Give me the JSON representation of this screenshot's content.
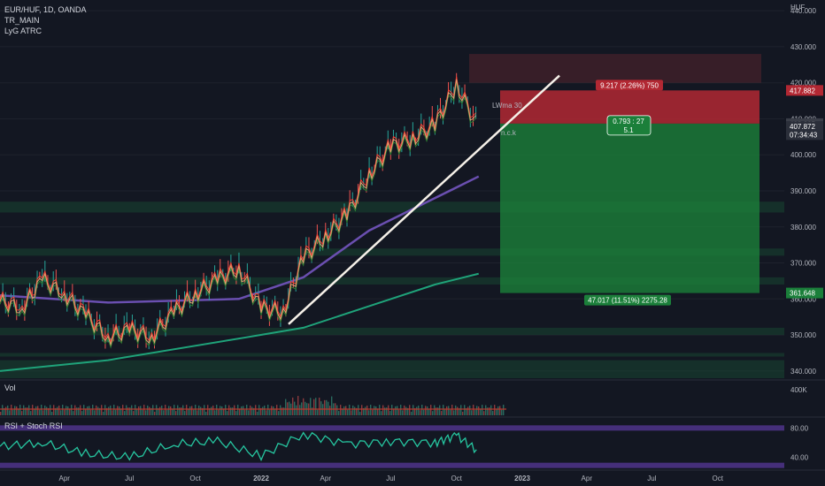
{
  "header": {
    "symbol_line": "EUR/HUF, 1D, OANDA",
    "indicator_1": "TR_MAIN",
    "indicator_2": "LyG ATRC"
  },
  "panes": {
    "volume_label": "Vol",
    "volume_axis_label": "400K",
    "rsi_label": "RSI + Stoch RSI",
    "rsi_axis_labels": [
      "80.00",
      "40.00"
    ]
  },
  "price_axis": {
    "currency": "HUF",
    "ticks": [
      440,
      430,
      420,
      410,
      400,
      390,
      380,
      370,
      360,
      350,
      340
    ],
    "tick_labels": [
      "440.000",
      "430.000",
      "420.000",
      "410.000",
      "400.000",
      "390.000",
      "380.000",
      "370.000",
      "360.000",
      "350.000",
      "340.000"
    ],
    "tags": [
      {
        "label": "417.882",
        "value": 417.882,
        "color": "#b22833"
      },
      {
        "label": "408.665",
        "value": 408.665,
        "color": "#3a3e48"
      },
      {
        "label": "407.872",
        "value": 407.872,
        "color": "#2b2f3a"
      },
      {
        "label": "07:34:43",
        "value": 405.6,
        "color": "#2b2f3a"
      },
      {
        "label": "361.648",
        "value": 361.648,
        "color": "#1b7f3a"
      }
    ]
  },
  "time_axis": {
    "labels": [
      "Apr",
      "Jul",
      "Oct",
      "2022",
      "Apr",
      "Jul",
      "Oct",
      "2023",
      "Apr",
      "Jul",
      "Oct"
    ]
  },
  "position": {
    "stop_label": "9.217 (2.26%) 750",
    "entry_label_line1": "0.793 : 27",
    "entry_label_line2": "5.1",
    "target_label": "47.017 (11.51%) 2275.28",
    "entry": 408.665,
    "stop": 417.882,
    "target": 361.648,
    "stop_color": "#b22833",
    "target_color": "#1b7f3a"
  },
  "chart_annotations": {
    "ma_label_1": "LWma 30",
    "ma_label_2": "n.c.k"
  },
  "chart_data": {
    "type": "line",
    "title": "EUR/HUF, 1D, OANDA",
    "ylim": [
      338,
      442
    ],
    "x_range": [
      "2021-01",
      "2023-12"
    ],
    "price_series": [
      {
        "date": "2021-01",
        "close": 360
      },
      {
        "date": "2021-02",
        "close": 358
      },
      {
        "date": "2021-03",
        "close": 366
      },
      {
        "date": "2021-04",
        "close": 362
      },
      {
        "date": "2021-05",
        "close": 356
      },
      {
        "date": "2021-06",
        "close": 350
      },
      {
        "date": "2021-07",
        "close": 352
      },
      {
        "date": "2021-08",
        "close": 350
      },
      {
        "date": "2021-09",
        "close": 357
      },
      {
        "date": "2021-10",
        "close": 362
      },
      {
        "date": "2021-11",
        "close": 366
      },
      {
        "date": "2021-12",
        "close": 369
      },
      {
        "date": "2022-01",
        "close": 358
      },
      {
        "date": "2022-02",
        "close": 357
      },
      {
        "date": "2022-03",
        "close": 372
      },
      {
        "date": "2022-04",
        "close": 378
      },
      {
        "date": "2022-05",
        "close": 384
      },
      {
        "date": "2022-06",
        "close": 395
      },
      {
        "date": "2022-07",
        "close": 403
      },
      {
        "date": "2022-08",
        "close": 405
      },
      {
        "date": "2022-09",
        "close": 409
      },
      {
        "date": "2022-10",
        "close": 420
      },
      {
        "date": "2022-11",
        "close": 408
      }
    ],
    "rsi_ylim": [
      30,
      90
    ],
    "rsi_series": [
      {
        "date": "2021-01",
        "value": 55
      },
      {
        "date": "2021-03",
        "value": 60
      },
      {
        "date": "2021-05",
        "value": 45
      },
      {
        "date": "2021-07",
        "value": 40
      },
      {
        "date": "2021-09",
        "value": 58
      },
      {
        "date": "2021-11",
        "value": 62
      },
      {
        "date": "2022-01",
        "value": 42
      },
      {
        "date": "2022-03",
        "value": 72
      },
      {
        "date": "2022-05",
        "value": 58
      },
      {
        "date": "2022-07",
        "value": 62
      },
      {
        "date": "2022-09",
        "value": 60
      },
      {
        "date": "2022-10",
        "value": 70
      },
      {
        "date": "2022-11",
        "value": 48
      }
    ]
  }
}
